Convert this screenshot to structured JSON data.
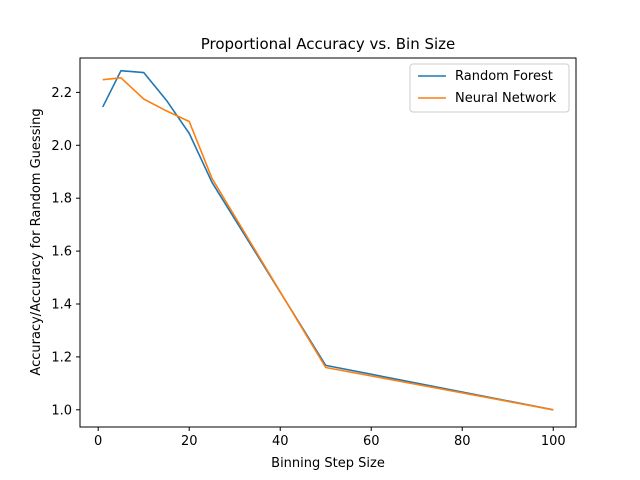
{
  "chart_data": {
    "type": "line",
    "title": "Proportional Accuracy vs. Bin Size",
    "xlabel": "Binning Step Size",
    "ylabel": "Accuracy/Accuracy for Random Guessing",
    "xlim": [
      -4,
      105
    ],
    "ylim": [
      0.935,
      2.33
    ],
    "xticks": [
      0,
      20,
      40,
      60,
      80,
      100
    ],
    "xtick_labels": [
      "0",
      "20",
      "40",
      "60",
      "80",
      "100"
    ],
    "yticks": [
      1.0,
      1.2,
      1.4,
      1.6,
      1.8,
      2.0,
      2.2
    ],
    "ytick_labels": [
      "1.0",
      "1.2",
      "1.4",
      "1.6",
      "1.8",
      "2.0",
      "2.2"
    ],
    "grid": false,
    "legend_position": "top-right",
    "series": [
      {
        "name": "Random Forest",
        "color": "#1f77b4",
        "x": [
          1,
          5,
          10,
          15,
          20,
          25,
          50,
          100
        ],
        "y": [
          2.145,
          2.282,
          2.275,
          2.17,
          2.045,
          1.86,
          1.168,
          1.0
        ]
      },
      {
        "name": "Neural Network",
        "color": "#ff7f0e",
        "x": [
          1,
          5,
          10,
          15,
          20,
          25,
          50,
          100
        ],
        "y": [
          2.248,
          2.255,
          2.175,
          2.13,
          2.09,
          1.875,
          1.16,
          1.0
        ]
      }
    ]
  }
}
